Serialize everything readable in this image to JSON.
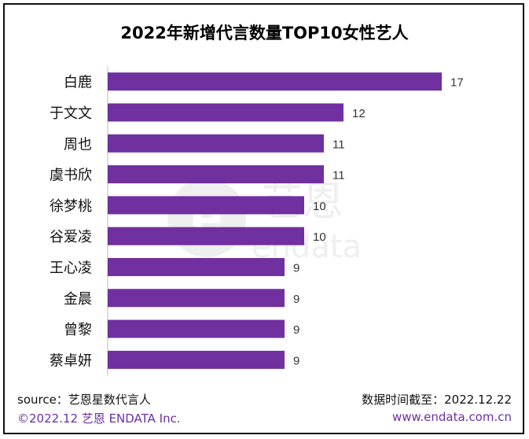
{
  "chart_data": {
    "type": "bar",
    "orientation": "horizontal",
    "title": "2022年新增代言数量TOP10女性艺人",
    "categories": [
      "白鹿",
      "于文文",
      "周也",
      "虞书欣",
      "徐梦桃",
      "谷爱凌",
      "王心凌",
      "金晨",
      "曾黎",
      "蔡卓妍"
    ],
    "values": [
      17,
      12,
      11,
      11,
      10,
      10,
      9,
      9,
      9,
      9
    ],
    "xlim": [
      0,
      18
    ],
    "grid": false,
    "bar_color": "#7030A0"
  },
  "watermark": {
    "cn": "艺恩",
    "en": "endata"
  },
  "footer": {
    "source": "source：艺恩星数代言人",
    "cutoff": "数据时间截至：2022.12.22",
    "copyright": "©2022.12  艺恩 ENDATA Inc.",
    "website": "www.endata.com.cn"
  },
  "colors": {
    "accent": "#6b2fa6",
    "bar": "#7030A0"
  }
}
